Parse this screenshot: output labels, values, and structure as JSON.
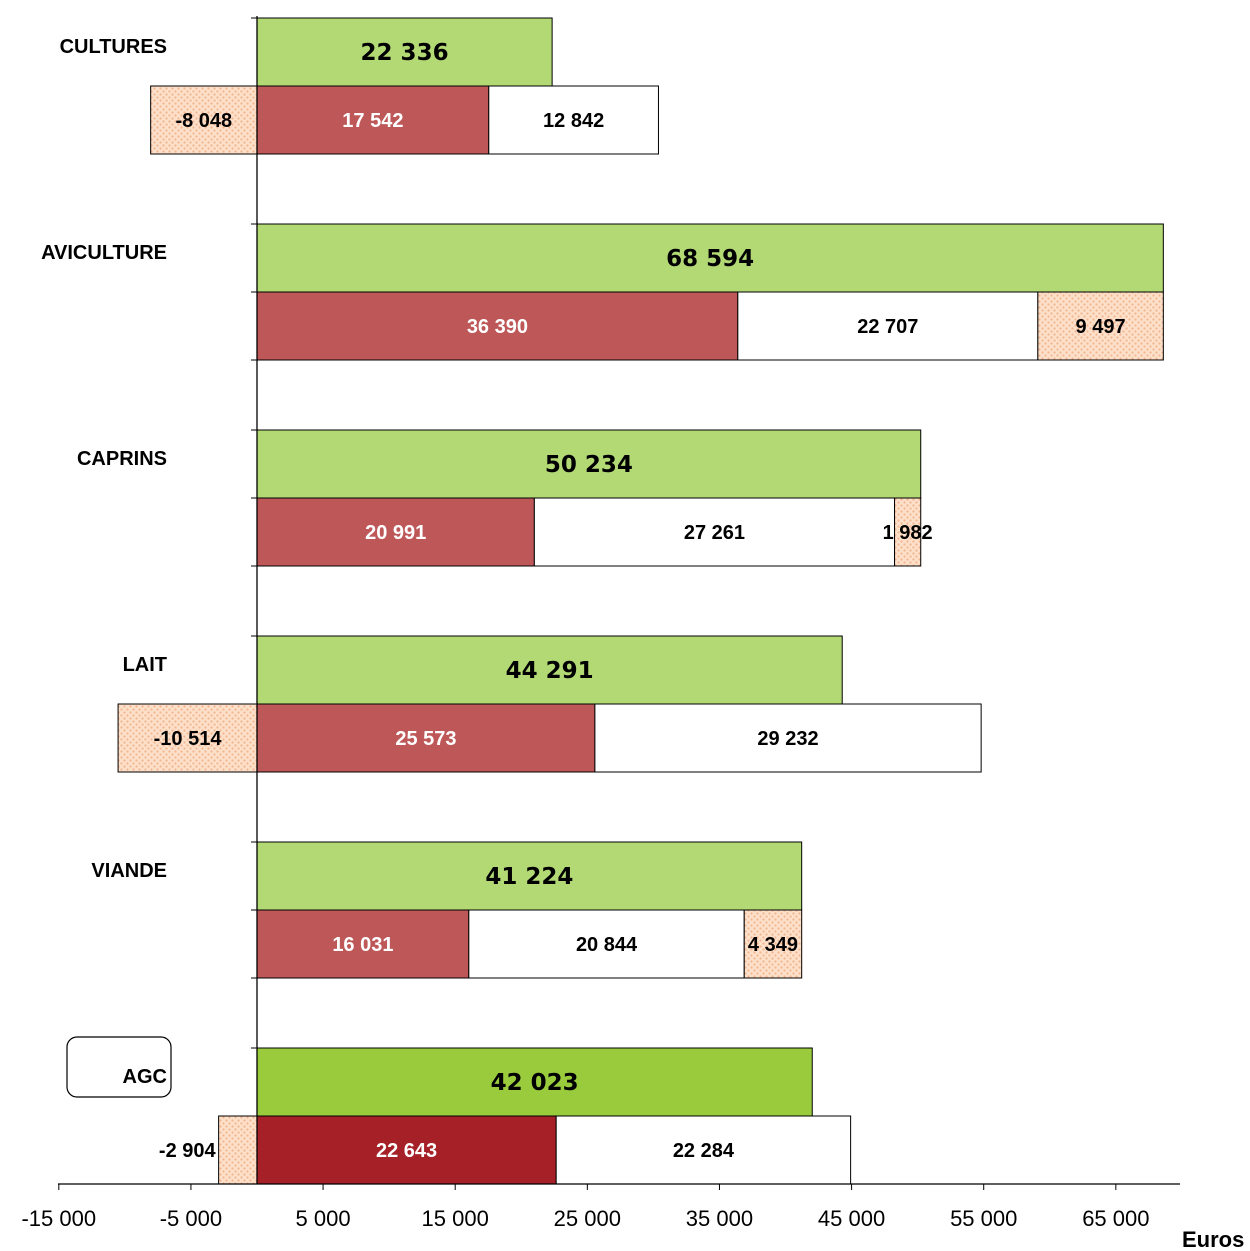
{
  "chart_data": {
    "type": "bar",
    "orientation": "horizontal",
    "xlabel": "Euros",
    "xlim": [
      -15000,
      70000
    ],
    "ticks": [
      -15000,
      -5000,
      5000,
      15000,
      25000,
      35000,
      45000,
      55000,
      65000
    ],
    "tick_labels": [
      "-15 000",
      "-5 000",
      "5 000",
      "15 000",
      "25 000",
      "35 000",
      "45 000",
      "55 000",
      "65 000"
    ],
    "colors": {
      "total": "#b3d975",
      "total_highlight": "#99cb3d",
      "dark_segment": "#bd5758",
      "dark_segment_highlight": "#a52127",
      "white_segment": "#ffffff",
      "residual": "#fde0c9",
      "residual_dots": "#f3b490"
    },
    "categories": [
      {
        "name": "CULTURES",
        "highlight": false,
        "total": 22336,
        "total_label": "22 336",
        "segments": [
          17542,
          12842
        ],
        "segment_labels": [
          "17 542",
          "12 842"
        ],
        "residual": -8048,
        "residual_label": "-8 048"
      },
      {
        "name": "AVICULTURE",
        "highlight": false,
        "total": 68594,
        "total_label": "68 594",
        "segments": [
          36390,
          22707
        ],
        "segment_labels": [
          "36 390",
          "22 707"
        ],
        "residual": 9497,
        "residual_label": "9 497"
      },
      {
        "name": "CAPRINS",
        "highlight": false,
        "total": 50234,
        "total_label": "50 234",
        "segments": [
          20991,
          27261
        ],
        "segment_labels": [
          "20 991",
          "27 261"
        ],
        "residual": 1982,
        "residual_label": "1 982"
      },
      {
        "name": "LAIT",
        "highlight": false,
        "total": 44291,
        "total_label": "44 291",
        "segments": [
          25573,
          29232
        ],
        "segment_labels": [
          "25 573",
          "29 232"
        ],
        "residual": -10514,
        "residual_label": "-10 514"
      },
      {
        "name": "VIANDE",
        "highlight": false,
        "total": 41224,
        "total_label": "41 224",
        "segments": [
          16031,
          20844
        ],
        "segment_labels": [
          "16 031",
          "20 844"
        ],
        "residual": 4349,
        "residual_label": "4 349"
      },
      {
        "name": "AGC",
        "highlight": true,
        "total": 42023,
        "total_label": "42 023",
        "segments": [
          22643,
          22284
        ],
        "segment_labels": [
          "22 643",
          "22 284"
        ],
        "residual": -2904,
        "residual_label": "-2 904"
      }
    ]
  }
}
